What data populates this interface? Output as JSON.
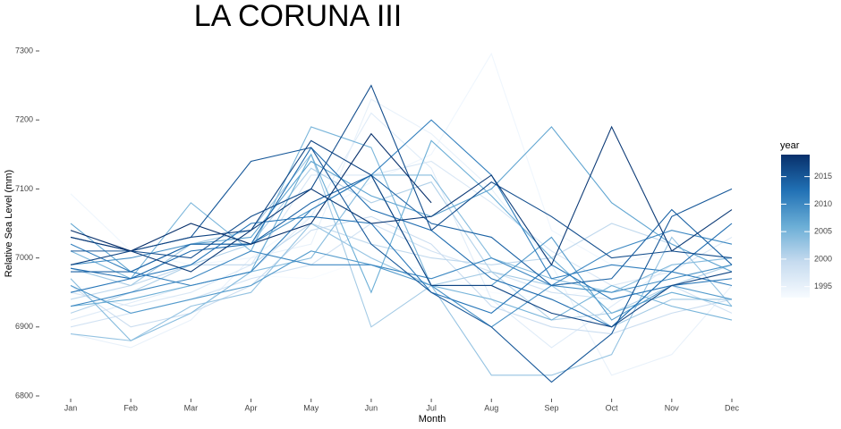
{
  "chart_data": {
    "type": "line",
    "title": "LA CORUNA III",
    "xlabel": "Month",
    "ylabel": "Relative Sea Level (mm)",
    "categories": [
      "Jan",
      "Feb",
      "Mar",
      "Apr",
      "May",
      "Jun",
      "Jul",
      "Aug",
      "Sep",
      "Oct",
      "Nov",
      "Dec"
    ],
    "ylim": [
      6800,
      7300
    ],
    "yticks": [
      6800,
      6900,
      7000,
      7100,
      7200,
      7300
    ],
    "grid": false,
    "legend": {
      "title": "year",
      "lim": [
        1993,
        2019
      ],
      "ticks": [
        1995,
        2000,
        2005,
        2010,
        2015
      ],
      "colors": [
        "#f7fbff",
        "#c6dbef",
        "#6baed6",
        "#2171b5",
        "#08306b"
      ]
    },
    "series": [
      {
        "year": 1993,
        "values": [
          6960,
          6950,
          6940,
          6975,
          6970,
          7000,
          6980,
          6950,
          6940,
          6960,
          6950,
          6970
        ]
      },
      {
        "year": 1994,
        "values": [
          7093,
          7010,
          6990,
          7000,
          7060,
          7110,
          7150,
          7296,
          7040,
          6990,
          7010,
          7000
        ]
      },
      {
        "year": 1995,
        "values": [
          6890,
          6870,
          6910,
          7000,
          7020,
          7230,
          7180,
          7100,
          6990,
          6830,
          6860,
          6960
        ]
      },
      {
        "year": 1996,
        "values": [
          6910,
          6935,
          6960,
          6980,
          7060,
          7210,
          7130,
          6940,
          6870,
          6930,
          6990,
          7000
        ]
      },
      {
        "year": 1997,
        "values": [
          6950,
          6930,
          6950,
          6990,
          7120,
          7120,
          7140,
          7080,
          7010,
          6960,
          6980,
          7030
        ]
      },
      {
        "year": 1998,
        "values": [
          6900,
          6920,
          6940,
          6970,
          6990,
          7050,
          7010,
          6980,
          6950,
          6940,
          6960,
          6920
        ]
      },
      {
        "year": 1999,
        "values": [
          6960,
          6900,
          6920,
          6960,
          7040,
          7060,
          7020,
          6930,
          6900,
          6890,
          6920,
          6940
        ]
      },
      {
        "year": 2000,
        "values": [
          6940,
          6960,
          6990,
          6990,
          7050,
          7020,
          7000,
          6990,
          7000,
          7050,
          7020,
          6980
        ]
      },
      {
        "year": 2001,
        "values": [
          6920,
          6950,
          6990,
          7020,
          7130,
          7080,
          7110,
          6980,
          6910,
          6920,
          6960,
          6990
        ]
      },
      {
        "year": 2002,
        "values": [
          6985,
          6960,
          7020,
          7040,
          7150,
          6900,
          6960,
          6980,
          6960,
          6900,
          6940,
          6940
        ]
      },
      {
        "year": 2003,
        "values": [
          6890,
          6880,
          6930,
          6950,
          7050,
          7000,
          6960,
          6830,
          6830,
          6860,
          7030,
          6930
        ]
      },
      {
        "year": 2004,
        "values": [
          6970,
          6880,
          6920,
          6980,
          7000,
          7120,
          7120,
          7000,
          6970,
          6950,
          6990,
          7000
        ]
      },
      {
        "year": 2005,
        "values": [
          7010,
          6970,
          7080,
          7010,
          7190,
          7160,
          6960,
          6940,
          6910,
          6960,
          6930,
          6910
        ]
      },
      {
        "year": 2006,
        "values": [
          6930,
          6940,
          6960,
          6980,
          7150,
          6950,
          7170,
          7090,
          7000,
          6920,
          6950,
          6930
        ]
      },
      {
        "year": 2007,
        "values": [
          7050,
          6980,
          7020,
          7030,
          7140,
          7090,
          7060,
          7100,
          7190,
          7080,
          7020,
          6980
        ]
      },
      {
        "year": 2008,
        "values": [
          6960,
          6920,
          6940,
          6960,
          7010,
          6990,
          6960,
          6960,
          7030,
          6910,
          6960,
          6940
        ]
      },
      {
        "year": 2009,
        "values": [
          6990,
          7000,
          7020,
          7020,
          7070,
          7120,
          6960,
          6900,
          6960,
          6950,
          6970,
          6990
        ]
      },
      {
        "year": 2010,
        "values": [
          6930,
          6950,
          6970,
          7010,
          6990,
          6990,
          6970,
          7000,
          6960,
          7010,
          7040,
          7020
        ]
      },
      {
        "year": 2011,
        "values": [
          7020,
          6980,
          6960,
          6980,
          7070,
          7120,
          7200,
          7120,
          6970,
          6990,
          6980,
          6960
        ]
      },
      {
        "year": 2012,
        "values": [
          6950,
          6970,
          6990,
          7050,
          7060,
          7050,
          6950,
          6920,
          6990,
          6940,
          6960,
          6970
        ]
      },
      {
        "year": 2013,
        "values": [
          6985,
          6970,
          7010,
          7020,
          7160,
          7070,
          7040,
          6970,
          6940,
          6900,
          6980,
          7050
        ]
      },
      {
        "year": 2014,
        "values": [
          6980,
          6980,
          7020,
          7020,
          7080,
          7120,
          7050,
          7030,
          6960,
          6970,
          7070,
          6990
        ]
      },
      {
        "year": 2015,
        "values": [
          7010,
          7010,
          7030,
          7140,
          7160,
          7020,
          6950,
          6900,
          6820,
          6890,
          7060,
          7100
        ]
      },
      {
        "year": 2016,
        "values": [
          7030,
          7010,
          7000,
          7060,
          7100,
          7250,
          7040,
          7110,
          7060,
          7000,
          7010,
          7000
        ]
      },
      {
        "year": 2017,
        "values": [
          6990,
          7010,
          7030,
          7040,
          7170,
          7120,
          6960,
          6960,
          6920,
          6900,
          6960,
          6980
        ]
      },
      {
        "year": 2018,
        "values": [
          7030,
          7010,
          6980,
          7040,
          7100,
          7050,
          7060,
          7120,
          6990,
          7190,
          7010,
          7070
        ]
      },
      {
        "year": 2019,
        "values": [
          7040,
          7010,
          7050,
          7020,
          7050,
          7180,
          7080,
          null,
          null,
          null,
          null,
          null
        ]
      }
    ]
  }
}
